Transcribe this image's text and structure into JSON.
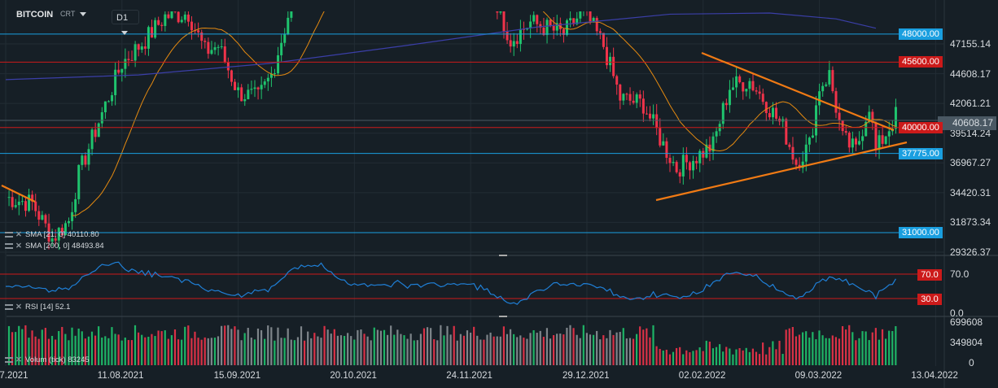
{
  "header": {
    "symbol": "BITCOIN",
    "instrument_type": "CRT",
    "timeframe": "D1"
  },
  "indicators": {
    "sma21": "SMA [21, 0] 40110.80",
    "sma200": "SMA [200, 0] 48493.84",
    "rsi": "RSI [14] 52.1",
    "volume": "Volum (tick) 83245"
  },
  "price_axis": [
    "47155.14",
    "44608.17",
    "42061.21",
    "39514.24",
    "36967.27",
    "34420.31",
    "31873.34",
    "29326.37"
  ],
  "current_price": "40608.17",
  "levels": [
    {
      "label": "48000.00",
      "price": 48000,
      "color": "#1a9fe0"
    },
    {
      "label": "45600.00",
      "price": 45600,
      "color": "#cc1a1a"
    },
    {
      "label": "40000.00",
      "price": 40000,
      "color": "#cc1a1a"
    },
    {
      "label": "37775.00",
      "price": 37775,
      "color": "#1a9fe0"
    },
    {
      "label": "31000.00",
      "price": 31000,
      "color": "#1a9fe0"
    }
  ],
  "rsi_axis": [
    "70.0",
    "30.0",
    "0.0"
  ],
  "volume_axis": [
    "699608",
    "349804",
    "0"
  ],
  "date_axis": [
    "07.07.2021",
    "11.08.2021",
    "15.09.2021",
    "20.10.2021",
    "24.11.2021",
    "29.12.2021",
    "02.02.2022",
    "09.03.2022",
    "13.04.2022"
  ],
  "colors": {
    "up": "#1fc46e",
    "down": "#f0334a",
    "sma21": "#e58a10",
    "sma200": "#3b3fa8",
    "rsi": "#1f7fd6",
    "trend": "#f07a14"
  },
  "chart_data": {
    "type": "candlestick",
    "anchors_day_close": [
      [
        0,
        34000
      ],
      [
        8,
        33500
      ],
      [
        14,
        30500
      ],
      [
        19,
        32000
      ],
      [
        22,
        36000
      ],
      [
        28,
        40500
      ],
      [
        35,
        45500
      ],
      [
        42,
        47500
      ],
      [
        48,
        49500
      ],
      [
        55,
        49800
      ],
      [
        60,
        46500
      ],
      [
        64,
        47000
      ],
      [
        70,
        43000
      ],
      [
        76,
        42500
      ],
      [
        80,
        44500
      ],
      [
        84,
        48500
      ],
      [
        90,
        55000
      ],
      [
        140,
        57000
      ],
      [
        150,
        49000
      ],
      [
        152,
        47500
      ],
      [
        158,
        49000
      ],
      [
        168,
        48000
      ],
      [
        174,
        50000
      ],
      [
        180,
        47000
      ],
      [
        185,
        42500
      ],
      [
        192,
        42000
      ],
      [
        198,
        38500
      ],
      [
        202,
        36500
      ],
      [
        208,
        37500
      ],
      [
        213,
        38500
      ],
      [
        218,
        43500
      ],
      [
        224,
        44000
      ],
      [
        228,
        42500
      ],
      [
        234,
        40000
      ],
      [
        238,
        37000
      ],
      [
        242,
        38500
      ],
      [
        245,
        43500
      ],
      [
        248,
        44500
      ],
      [
        252,
        39000
      ],
      [
        256,
        38000
      ],
      [
        260,
        42000
      ],
      [
        262,
        38000
      ],
      [
        266,
        40000
      ],
      [
        268,
        41000
      ],
      [
        247,
        0
      ]
    ]
  }
}
